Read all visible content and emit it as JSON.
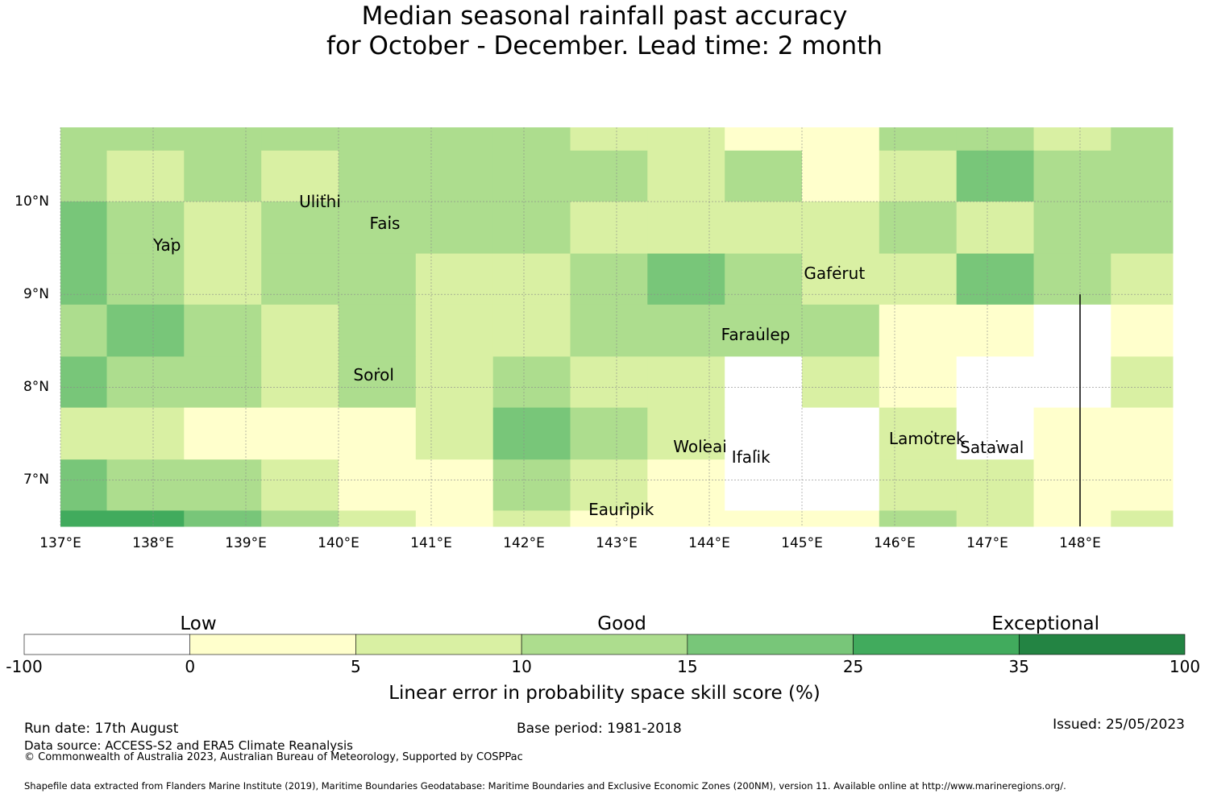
{
  "title": {
    "line1": "Median seasonal rainfall past accuracy",
    "line2": "for October - December. Lead time: 2 month"
  },
  "colors": {
    "c0": "#ffffff",
    "c1": "#ffffcc",
    "c2": "#d9f0a3",
    "c3": "#addd8e",
    "c4": "#78c679",
    "c5": "#41ab5d",
    "c6": "#238443",
    "grid": "#8a8a8a",
    "boundary": "#000000"
  },
  "map": {
    "lon_range": [
      137,
      149
    ],
    "lat_range": [
      6.5,
      10.8
    ],
    "lat_ticks": [
      {
        "value": 10,
        "label": "10°N"
      },
      {
        "value": 9,
        "label": "9°N"
      },
      {
        "value": 8,
        "label": "8°N"
      },
      {
        "value": 7,
        "label": "7°N"
      }
    ],
    "lon_ticks": [
      {
        "value": 137,
        "label": "137°E"
      },
      {
        "value": 138,
        "label": "138°E"
      },
      {
        "value": 139,
        "label": "139°E"
      },
      {
        "value": 140,
        "label": "140°E"
      },
      {
        "value": 141,
        "label": "141°E"
      },
      {
        "value": 142,
        "label": "142°E"
      },
      {
        "value": 143,
        "label": "143°E"
      },
      {
        "value": 144,
        "label": "144°E"
      },
      {
        "value": 145,
        "label": "145°E"
      },
      {
        "value": 146,
        "label": "146°E"
      },
      {
        "value": 147,
        "label": "147°E"
      },
      {
        "value": 148,
        "label": "148°E"
      }
    ],
    "grid_lon_edges": [
      137,
      137.5,
      138.333,
      139.167,
      140,
      140.833,
      141.667,
      142.5,
      143.333,
      144.167,
      145,
      145.833,
      146.667,
      147.5,
      148.333,
      149
    ],
    "grid_lat_edges": [
      10.8,
      10.55,
      10,
      9.44,
      8.89,
      8.33,
      7.78,
      7.22,
      6.67,
      6.5
    ],
    "skill_classes": [
      [
        2,
        2,
        2,
        2,
        2,
        2,
        2,
        1,
        1,
        0,
        0,
        2,
        2,
        1,
        2
      ],
      [
        2,
        1,
        2,
        1,
        2,
        2,
        2,
        2,
        1,
        2,
        0,
        1,
        3,
        2,
        2
      ],
      [
        3,
        2,
        1,
        2,
        2,
        2,
        2,
        1,
        1,
        1,
        1,
        2,
        1,
        2,
        2
      ],
      [
        3,
        2,
        1,
        2,
        2,
        1,
        1,
        2,
        3,
        2,
        1,
        1,
        3,
        2,
        1
      ],
      [
        2,
        3,
        2,
        1,
        2,
        1,
        1,
        2,
        2,
        2,
        2,
        0,
        0,
        -1,
        0
      ],
      [
        3,
        2,
        2,
        1,
        2,
        1,
        2,
        1,
        1,
        -1,
        1,
        0,
        -1,
        -1,
        1
      ],
      [
        1,
        1,
        0,
        0,
        0,
        1,
        3,
        2,
        1,
        -1,
        -1,
        1,
        -1,
        0,
        0
      ],
      [
        3,
        2,
        2,
        1,
        0,
        0,
        2,
        1,
        0,
        -1,
        -1,
        1,
        1,
        0,
        0
      ],
      [
        4,
        4,
        3,
        2,
        1,
        0,
        1,
        0,
        0,
        0,
        0,
        2,
        1,
        0,
        1
      ]
    ],
    "boundary_lon": 148,
    "boundary_lat_range": [
      6.5,
      9.0
    ],
    "places": [
      {
        "name": "Ulithi",
        "lon": 139.8,
        "lat": 10.0
      },
      {
        "name": "Fais",
        "lon": 140.5,
        "lat": 9.77
      },
      {
        "name": "Yap",
        "lon": 138.15,
        "lat": 9.53
      },
      {
        "name": "Gaferut",
        "lon": 145.35,
        "lat": 9.23
      },
      {
        "name": "Faraulep",
        "lon": 144.5,
        "lat": 8.57
      },
      {
        "name": "Sorol",
        "lon": 140.38,
        "lat": 8.13
      },
      {
        "name": "Woleai",
        "lon": 143.9,
        "lat": 7.36
      },
      {
        "name": "Ifalik",
        "lon": 144.45,
        "lat": 7.25
      },
      {
        "name": "Lamotrek",
        "lon": 146.35,
        "lat": 7.45
      },
      {
        "name": "Satawal",
        "lon": 147.05,
        "lat": 7.35
      },
      {
        "name": "Eauripik",
        "lon": 143.05,
        "lat": 6.68
      }
    ]
  },
  "legend": {
    "categories": [
      {
        "name": "Low",
        "at": 0.15
      },
      {
        "name": "Good",
        "at": 0.515
      },
      {
        "name": "Exceptional",
        "at": 0.88
      }
    ],
    "ticks": [
      "-100",
      "0",
      "5",
      "10",
      "15",
      "25",
      "35",
      "100"
    ],
    "label": "Linear error in probability space skill score (%)"
  },
  "footer": {
    "run_date": "Run date: 17th August",
    "base_period": "Base period: 1981-2018",
    "issued": "Issued: 25/05/2023",
    "data_source": "Data source: ACCESS-S2 and ERA5 Climate Reanalysis",
    "copyright": "© Commonwealth of Australia 2023, Australian Bureau of Meteorology, Supported by COSPPac",
    "shapefile": "Shapefile data extracted from Flanders Marine Institute (2019), Maritime Boundaries Geodatabase: Maritime Boundaries and Exclusive Economic Zones (200NM), version 11. Available online at http://www.marineregions.org/."
  }
}
